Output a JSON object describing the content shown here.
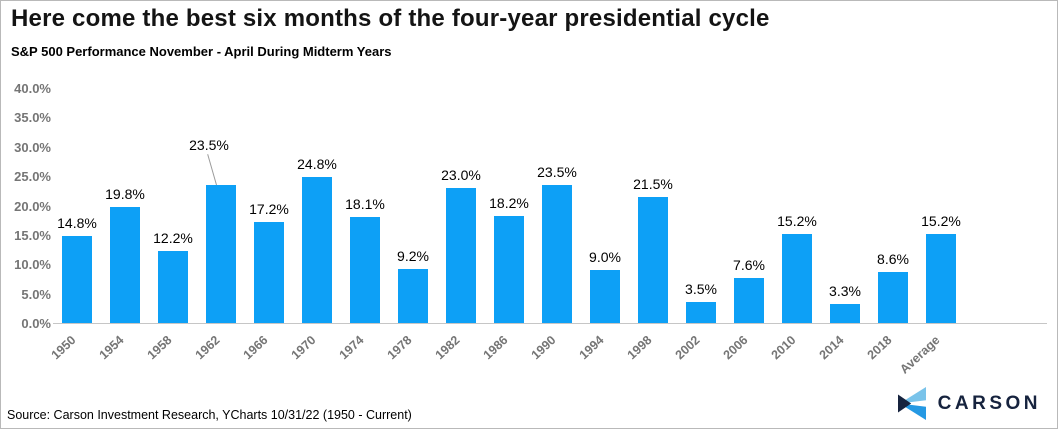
{
  "header": {
    "title": "Here come the best six months of the four-year presidential cycle",
    "subtitle": "S&P 500 Performance November - April During Midterm Years"
  },
  "chart_data": {
    "type": "bar",
    "title": "Here come the best six months of the four-year presidential cycle",
    "subtitle": "S&P 500 Performance November - April During Midterm Years",
    "categories": [
      "1950",
      "1954",
      "1958",
      "1962",
      "1966",
      "1970",
      "1974",
      "1978",
      "1982",
      "1986",
      "1990",
      "1994",
      "1998",
      "2002",
      "2006",
      "2010",
      "2014",
      "2018",
      "Average"
    ],
    "values": [
      14.8,
      19.8,
      12.2,
      23.5,
      17.2,
      24.8,
      18.1,
      9.2,
      23.0,
      18.2,
      23.5,
      9.0,
      21.5,
      3.5,
      7.6,
      15.2,
      3.3,
      8.6,
      15.2
    ],
    "value_labels": [
      "14.8%",
      "19.8%",
      "12.2%",
      "23.5%",
      "17.2%",
      "24.8%",
      "18.1%",
      "9.2%",
      "23.0%",
      "18.2%",
      "23.5%",
      "9.0%",
      "21.5%",
      "3.5%",
      "7.6%",
      "15.2%",
      "3.3%",
      "8.6%",
      "15.2%"
    ],
    "xlabel": "",
    "ylabel": "",
    "ylim": [
      0,
      40
    ],
    "ytick_labels": [
      "40.0%",
      "35.0%",
      "30.0%",
      "25.0%",
      "20.0%",
      "15.0%",
      "10.0%",
      "5.0%",
      "0.0%"
    ],
    "grid": false,
    "legend": "none",
    "bar_color": "#0da0f6",
    "callout_index": 3
  },
  "footer": {
    "source": "Source: Carson Investment Research, YCharts 10/31/22 (1950 - Current)",
    "logo_text": "CARSON"
  },
  "colors": {
    "bar": "#0da0f6",
    "axis_text": "#757575",
    "axis_line": "#c6c6c6",
    "logo_navy": "#16233e",
    "logo_light_blue": "#79c3ea",
    "logo_bright_blue": "#2599e3"
  }
}
